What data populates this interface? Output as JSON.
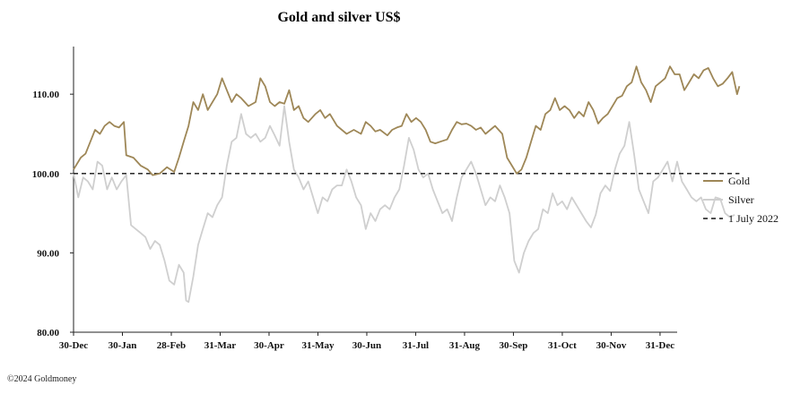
{
  "copyright": "©2024 Goldmoney",
  "chart_data": {
    "type": "line",
    "title": "Gold and silver  US$",
    "xlabel": "",
    "ylabel": "",
    "ylim": [
      80,
      116
    ],
    "yticks": [
      "80.00",
      "90.00",
      "100.00",
      "110.00"
    ],
    "ytick_values": [
      80,
      90,
      100,
      110
    ],
    "xticks": [
      "30-Dec",
      "30-Jan",
      "28-Feb",
      "31-Mar",
      "30-Apr",
      "31-May",
      "30-Jun",
      "31-Jul",
      "31-Aug",
      "30-Sep",
      "31-Oct",
      "30-Nov",
      "31-Dec"
    ],
    "grid": false,
    "legend_position": "right",
    "colors": {
      "gold": "#9e8757",
      "silver": "#cfcfcf",
      "reference": "#111111"
    },
    "x_index_range": [
      0,
      252
    ],
    "series": [
      {
        "name": "Gold",
        "points": [
          [
            0,
            100.5
          ],
          [
            3,
            102
          ],
          [
            5,
            102.5
          ],
          [
            7,
            104
          ],
          [
            9,
            105.5
          ],
          [
            11,
            105
          ],
          [
            13,
            106
          ],
          [
            15,
            106.5
          ],
          [
            17,
            106
          ],
          [
            19,
            105.8
          ],
          [
            21,
            106.5
          ],
          [
            22,
            102.3
          ],
          [
            25,
            102
          ],
          [
            28,
            101
          ],
          [
            31,
            100.5
          ],
          [
            33,
            99.8
          ],
          [
            36,
            100
          ],
          [
            39,
            100.8
          ],
          [
            42,
            100.2
          ],
          [
            44,
            102
          ],
          [
            46,
            104
          ],
          [
            48,
            106
          ],
          [
            50,
            109
          ],
          [
            52,
            108
          ],
          [
            54,
            110
          ],
          [
            56,
            108
          ],
          [
            58,
            109
          ],
          [
            60,
            110
          ],
          [
            62,
            112
          ],
          [
            64,
            110.5
          ],
          [
            66,
            109
          ],
          [
            68,
            110
          ],
          [
            70,
            109.5
          ],
          [
            73,
            108.5
          ],
          [
            76,
            109
          ],
          [
            78,
            112
          ],
          [
            80,
            111
          ],
          [
            82,
            109
          ],
          [
            84,
            108.5
          ],
          [
            86,
            109
          ],
          [
            88,
            108.8
          ],
          [
            90,
            110.5
          ],
          [
            92,
            108
          ],
          [
            94,
            108.5
          ],
          [
            96,
            107
          ],
          [
            98,
            106.5
          ],
          [
            101,
            107.5
          ],
          [
            103,
            108
          ],
          [
            105,
            107
          ],
          [
            107,
            107.5
          ],
          [
            110,
            106
          ],
          [
            112,
            105.5
          ],
          [
            114,
            105
          ],
          [
            117,
            105.5
          ],
          [
            120,
            105
          ],
          [
            122,
            106.5
          ],
          [
            124,
            106
          ],
          [
            126,
            105.3
          ],
          [
            128,
            105.5
          ],
          [
            131,
            104.8
          ],
          [
            133,
            105.5
          ],
          [
            135,
            105.8
          ],
          [
            137,
            106
          ],
          [
            139,
            107.5
          ],
          [
            141,
            106.5
          ],
          [
            143,
            107
          ],
          [
            145,
            106.5
          ],
          [
            147,
            105.5
          ],
          [
            149,
            104
          ],
          [
            151,
            103.8
          ],
          [
            153,
            104
          ],
          [
            156,
            104.3
          ],
          [
            158,
            105.5
          ],
          [
            160,
            106.5
          ],
          [
            162,
            106.2
          ],
          [
            164,
            106.3
          ],
          [
            166,
            106
          ],
          [
            168,
            105.5
          ],
          [
            170,
            105.8
          ],
          [
            172,
            105
          ],
          [
            174,
            105.5
          ],
          [
            176,
            106
          ],
          [
            179,
            105
          ],
          [
            181,
            102
          ],
          [
            183,
            101
          ],
          [
            185,
            100
          ],
          [
            187,
            100.5
          ],
          [
            189,
            102
          ],
          [
            191,
            104
          ],
          [
            193,
            106
          ],
          [
            195,
            105.5
          ],
          [
            197,
            107.5
          ],
          [
            199,
            108
          ],
          [
            201,
            109.5
          ],
          [
            203,
            108
          ],
          [
            205,
            108.5
          ],
          [
            207,
            108
          ],
          [
            209,
            107
          ],
          [
            211,
            107.8
          ],
          [
            213,
            107.2
          ],
          [
            215,
            109
          ],
          [
            217,
            108
          ],
          [
            219,
            106.3
          ],
          [
            221,
            107
          ],
          [
            223,
            107.5
          ],
          [
            225,
            108.5
          ],
          [
            227,
            109.5
          ],
          [
            229,
            109.8
          ],
          [
            231,
            111
          ],
          [
            233,
            111.5
          ],
          [
            235,
            113.5
          ],
          [
            237,
            111.5
          ],
          [
            239,
            110.5
          ],
          [
            241,
            109
          ],
          [
            243,
            111
          ],
          [
            245,
            111.5
          ],
          [
            247,
            112
          ],
          [
            249,
            113.5
          ],
          [
            251,
            112.5
          ],
          [
            253,
            112.5
          ],
          [
            255,
            110.5
          ],
          [
            257,
            111.5
          ],
          [
            259,
            112.5
          ],
          [
            261,
            112
          ],
          [
            263,
            113
          ],
          [
            265,
            113.3
          ],
          [
            267,
            112
          ],
          [
            269,
            111
          ],
          [
            271,
            111.3
          ],
          [
            273,
            112
          ],
          [
            275,
            112.8
          ],
          [
            277,
            110
          ],
          [
            278,
            111
          ]
        ]
      },
      {
        "name": "Silver",
        "points": [
          [
            0,
            100
          ],
          [
            2,
            97
          ],
          [
            4,
            99.5
          ],
          [
            6,
            99
          ],
          [
            8,
            98
          ],
          [
            10,
            101.5
          ],
          [
            12,
            101
          ],
          [
            14,
            98
          ],
          [
            16,
            99.5
          ],
          [
            18,
            98
          ],
          [
            20,
            99
          ],
          [
            22,
            99.8
          ],
          [
            24,
            93.5
          ],
          [
            26,
            93
          ],
          [
            28,
            92.5
          ],
          [
            30,
            92
          ],
          [
            32,
            90.5
          ],
          [
            34,
            91.5
          ],
          [
            36,
            91
          ],
          [
            38,
            89
          ],
          [
            40,
            86.5
          ],
          [
            42,
            86
          ],
          [
            44,
            88.5
          ],
          [
            46,
            87.5
          ],
          [
            47,
            84
          ],
          [
            48,
            83.8
          ],
          [
            50,
            87
          ],
          [
            52,
            91
          ],
          [
            54,
            93
          ],
          [
            56,
            95
          ],
          [
            58,
            94.5
          ],
          [
            60,
            96
          ],
          [
            62,
            97
          ],
          [
            64,
            101
          ],
          [
            66,
            104
          ],
          [
            68,
            104.5
          ],
          [
            70,
            107.5
          ],
          [
            72,
            105
          ],
          [
            74,
            104.5
          ],
          [
            76,
            105
          ],
          [
            78,
            104
          ],
          [
            80,
            104.5
          ],
          [
            82,
            106
          ],
          [
            84,
            104.8
          ],
          [
            86,
            103.5
          ],
          [
            88,
            108.5
          ],
          [
            90,
            104
          ],
          [
            92,
            100.5
          ],
          [
            94,
            99.5
          ],
          [
            96,
            98
          ],
          [
            98,
            99
          ],
          [
            100,
            97
          ],
          [
            102,
            95
          ],
          [
            104,
            97
          ],
          [
            106,
            96.5
          ],
          [
            108,
            98
          ],
          [
            110,
            98.5
          ],
          [
            112,
            98.5
          ],
          [
            114,
            100.5
          ],
          [
            116,
            99
          ],
          [
            118,
            97
          ],
          [
            120,
            96
          ],
          [
            122,
            93
          ],
          [
            124,
            95
          ],
          [
            126,
            94
          ],
          [
            128,
            95.5
          ],
          [
            130,
            96
          ],
          [
            132,
            95.5
          ],
          [
            134,
            97
          ],
          [
            136,
            98
          ],
          [
            138,
            101
          ],
          [
            140,
            104.5
          ],
          [
            142,
            103
          ],
          [
            144,
            100.5
          ],
          [
            146,
            99.5
          ],
          [
            148,
            100
          ],
          [
            150,
            98
          ],
          [
            152,
            96.5
          ],
          [
            154,
            95
          ],
          [
            156,
            95.5
          ],
          [
            158,
            94
          ],
          [
            160,
            97
          ],
          [
            162,
            99.5
          ],
          [
            164,
            100.5
          ],
          [
            166,
            101.5
          ],
          [
            168,
            100
          ],
          [
            170,
            98
          ],
          [
            172,
            96
          ],
          [
            174,
            97
          ],
          [
            176,
            96.5
          ],
          [
            178,
            98.5
          ],
          [
            180,
            97
          ],
          [
            182,
            95
          ],
          [
            184,
            89
          ],
          [
            186,
            87.5
          ],
          [
            188,
            90
          ],
          [
            190,
            91.5
          ],
          [
            192,
            92.5
          ],
          [
            194,
            93
          ],
          [
            196,
            95.5
          ],
          [
            198,
            95
          ],
          [
            200,
            97.5
          ],
          [
            202,
            96
          ],
          [
            204,
            96.5
          ],
          [
            206,
            95.5
          ],
          [
            208,
            97
          ],
          [
            210,
            96
          ],
          [
            212,
            95
          ],
          [
            214,
            94
          ],
          [
            216,
            93.2
          ],
          [
            218,
            94.8
          ],
          [
            220,
            97.5
          ],
          [
            222,
            98.5
          ],
          [
            224,
            97.8
          ],
          [
            226,
            100.5
          ],
          [
            228,
            102.5
          ],
          [
            230,
            103.5
          ],
          [
            232,
            106.5
          ],
          [
            234,
            102.5
          ],
          [
            236,
            98
          ],
          [
            238,
            96.5
          ],
          [
            240,
            95
          ],
          [
            242,
            99
          ],
          [
            244,
            99.5
          ],
          [
            246,
            100.5
          ],
          [
            248,
            101.5
          ],
          [
            250,
            99
          ],
          [
            252,
            101.5
          ],
          [
            254,
            99
          ],
          [
            256,
            98
          ],
          [
            258,
            97
          ],
          [
            260,
            96.5
          ],
          [
            262,
            97
          ],
          [
            264,
            95.5
          ],
          [
            266,
            95
          ],
          [
            268,
            97
          ],
          [
            270,
            96.8
          ],
          [
            272,
            95
          ],
          [
            274,
            94.5
          ],
          [
            276,
            94.8
          ]
        ]
      },
      {
        "name": "1 July 2022",
        "style": "dashed",
        "points": [
          [
            0,
            100
          ],
          [
            278,
            100
          ]
        ]
      }
    ]
  }
}
